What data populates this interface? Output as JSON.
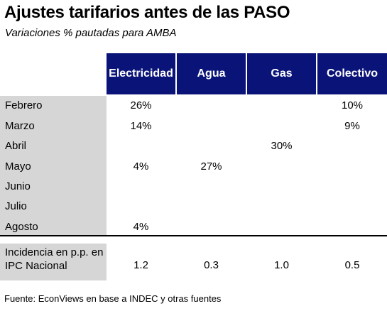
{
  "title": "Ajustes tarifarios antes de las PASO",
  "subtitle": "Variaciones % pautadas para AMBA",
  "columns": [
    "Electricidad",
    "Agua",
    "Gas",
    "Colectivo"
  ],
  "rows": [
    {
      "label": "Febrero",
      "values": [
        "26%",
        "",
        "",
        "10%"
      ]
    },
    {
      "label": "Marzo",
      "values": [
        "14%",
        "",
        "",
        "9%"
      ]
    },
    {
      "label": "Abril",
      "values": [
        "",
        "",
        "30%",
        ""
      ]
    },
    {
      "label": "Mayo",
      "values": [
        "4%",
        "27%",
        "",
        ""
      ]
    },
    {
      "label": "Junio",
      "values": [
        "",
        "",
        "",
        ""
      ]
    },
    {
      "label": "Julio",
      "values": [
        "",
        "",
        "",
        ""
      ]
    },
    {
      "label": "Agosto",
      "values": [
        "4%",
        "",
        "",
        ""
      ]
    }
  ],
  "incidence": {
    "label": "Incidencia en p.p. en IPC Nacional",
    "values": [
      "1.2",
      "0.3",
      "1.0",
      "0.5"
    ]
  },
  "source": "Fuente: EconViews en base a INDEC y otras fuentes",
  "colors": {
    "header_bg": "#0a1478",
    "header_text": "#ffffff",
    "label_bg": "#d6d6d6"
  },
  "chart_data": {
    "type": "table",
    "title": "Ajustes tarifarios antes de las PASO",
    "subtitle": "Variaciones % pautadas para AMBA",
    "columns": [
      "Electricidad",
      "Agua",
      "Gas",
      "Colectivo"
    ],
    "row_labels": [
      "Febrero",
      "Marzo",
      "Abril",
      "Mayo",
      "Junio",
      "Julio",
      "Agosto"
    ],
    "values": [
      [
        26,
        null,
        null,
        10
      ],
      [
        14,
        null,
        null,
        9
      ],
      [
        null,
        null,
        30,
        null
      ],
      [
        4,
        27,
        null,
        null
      ],
      [
        null,
        null,
        null,
        null
      ],
      [
        null,
        null,
        null,
        null
      ],
      [
        4,
        null,
        null,
        null
      ]
    ],
    "incidence_ipc_pp": [
      1.2,
      0.3,
      1.0,
      0.5
    ]
  }
}
